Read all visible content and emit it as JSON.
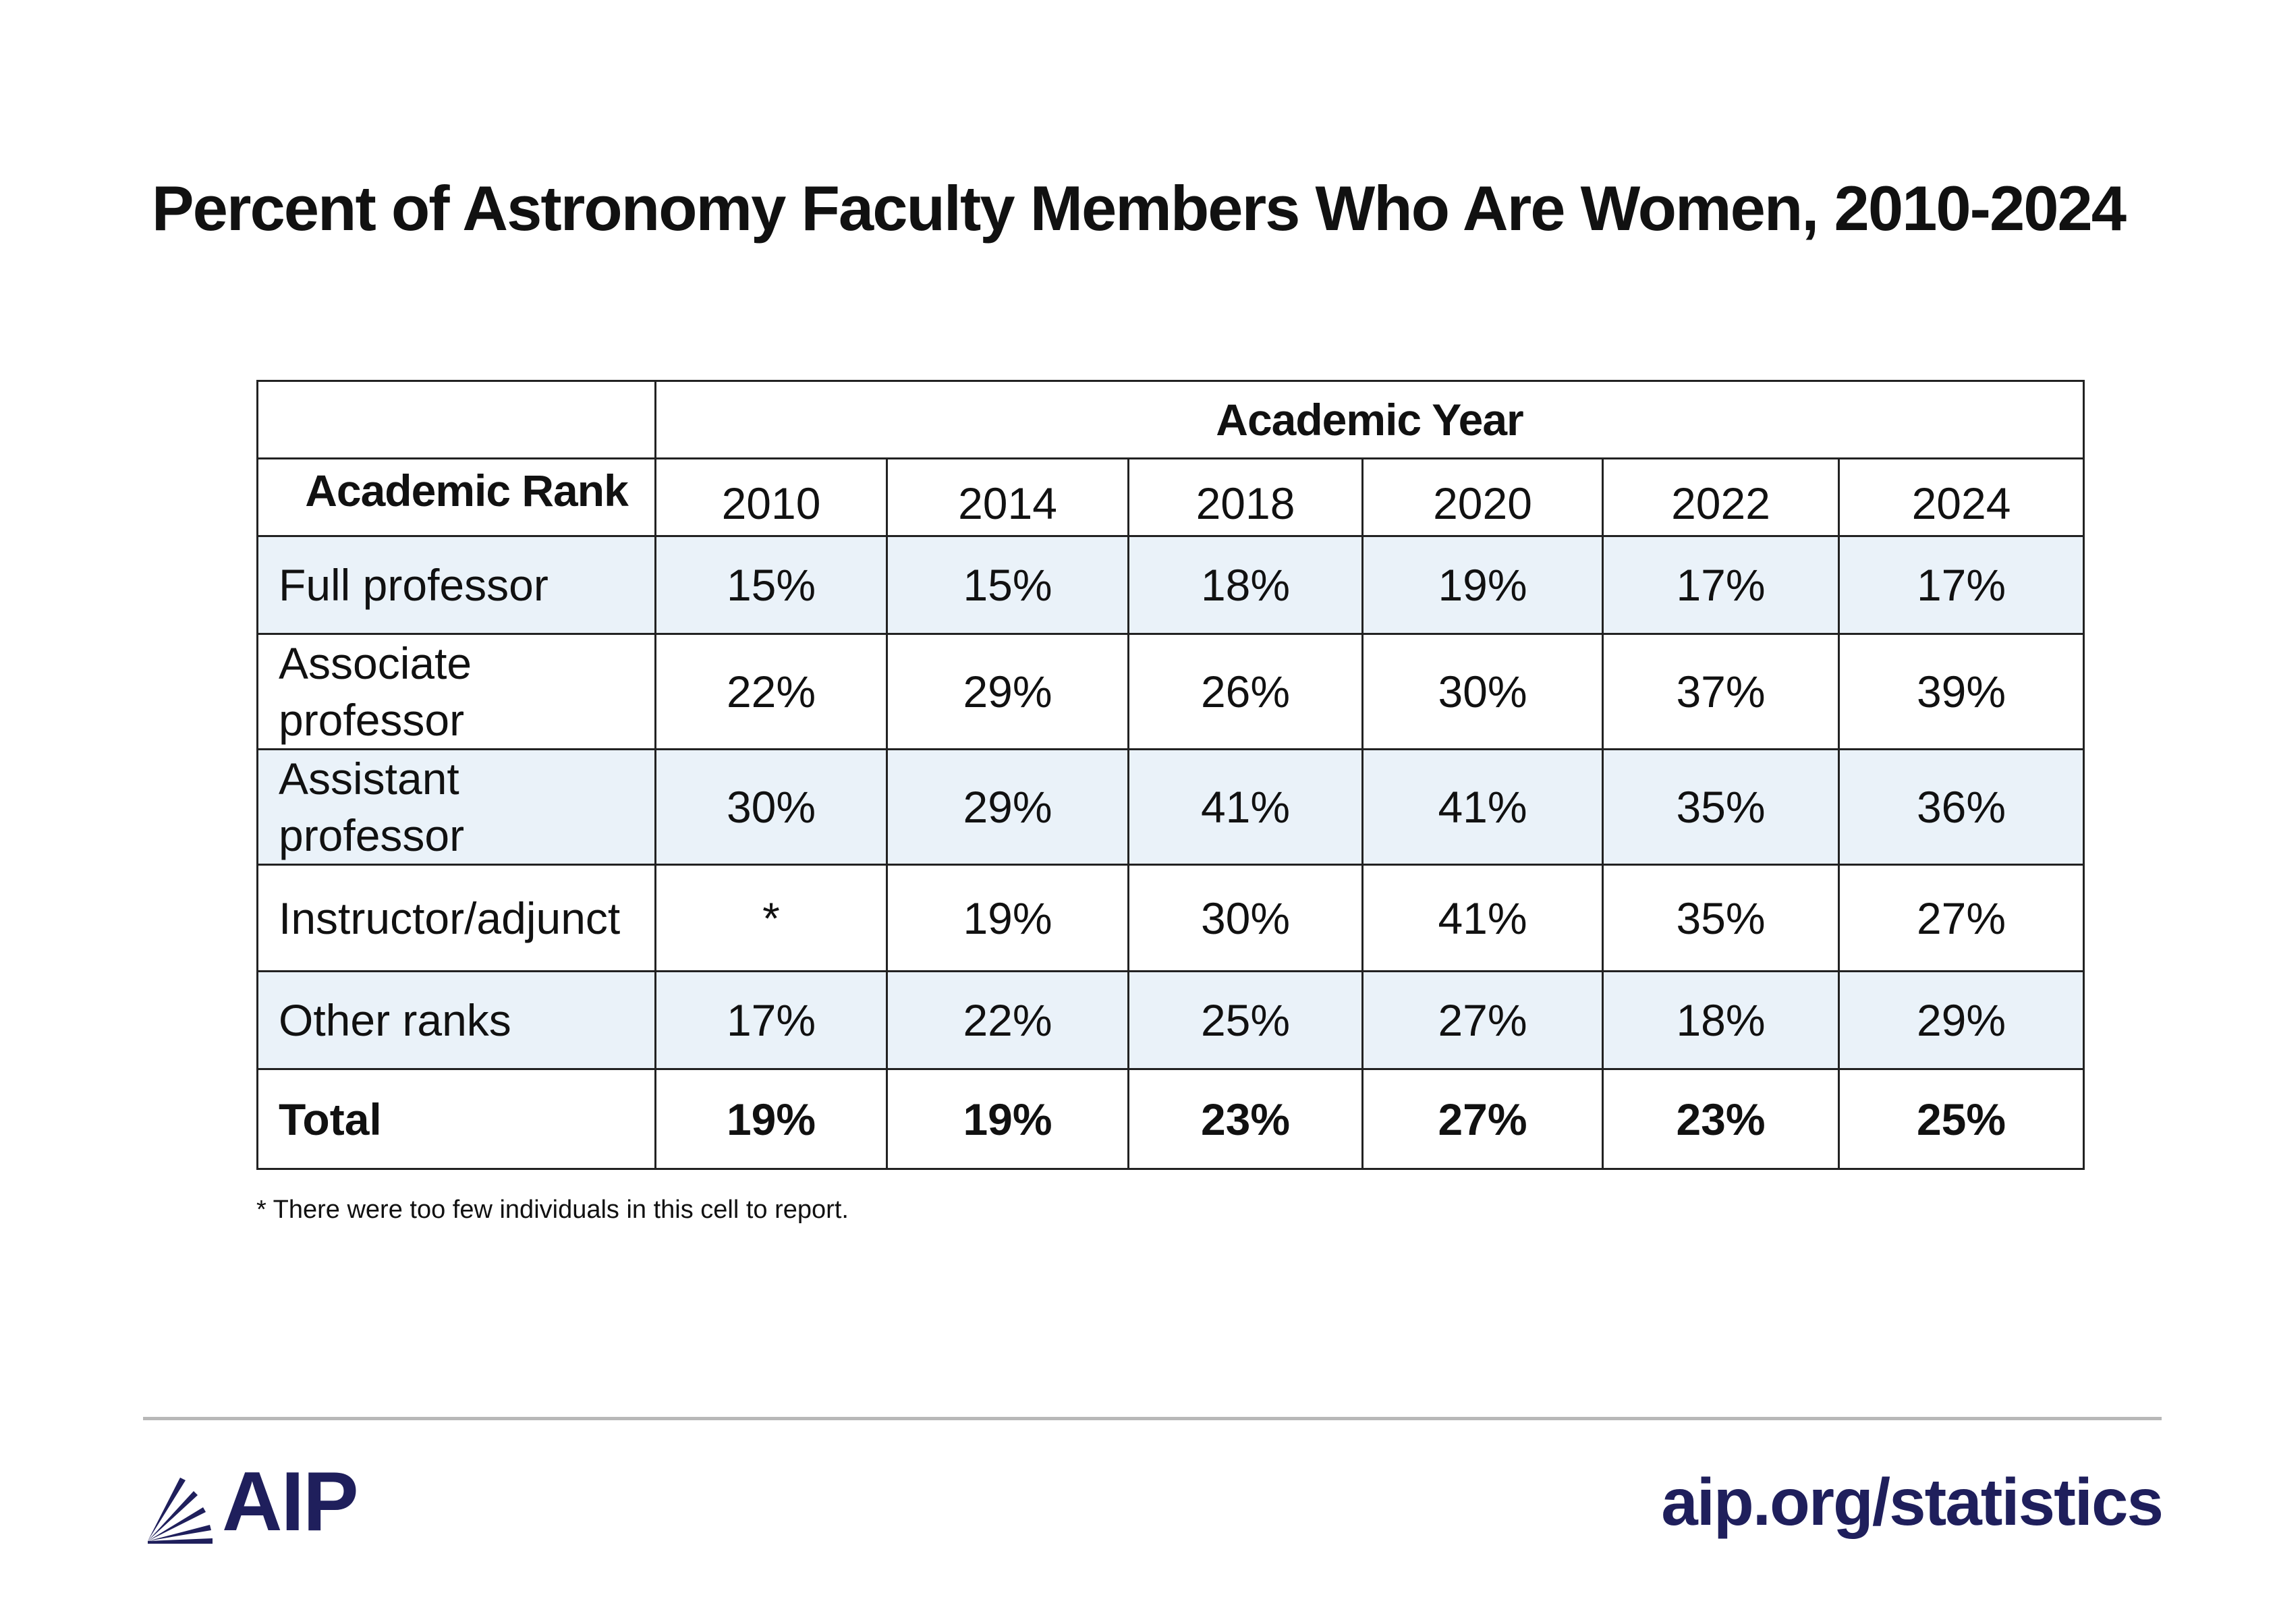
{
  "chart_data": {
    "type": "table",
    "title": "Percent of Astronomy Faculty Members Who Are Women, 2010-2024",
    "column_group_label": "Academic Year",
    "row_header_label": "Academic Rank",
    "columns": [
      "2010",
      "2014",
      "2018",
      "2020",
      "2022",
      "2024"
    ],
    "rows": [
      {
        "rank": "Full professor",
        "values": [
          "15%",
          "15%",
          "18%",
          "19%",
          "17%",
          "17%"
        ]
      },
      {
        "rank": "Associate professor",
        "values": [
          "22%",
          "29%",
          "26%",
          "30%",
          "37%",
          "39%"
        ]
      },
      {
        "rank": "Assistant professor",
        "values": [
          "30%",
          "29%",
          "41%",
          "41%",
          "35%",
          "36%"
        ]
      },
      {
        "rank": "Instructor/adjunct",
        "values": [
          "*",
          "19%",
          "30%",
          "41%",
          "35%",
          "27%"
        ]
      },
      {
        "rank": "Other ranks",
        "values": [
          "17%",
          "22%",
          "25%",
          "27%",
          "18%",
          "29%"
        ]
      }
    ],
    "total": {
      "label": "Total",
      "values": [
        "19%",
        "19%",
        "23%",
        "27%",
        "23%",
        "25%"
      ]
    },
    "footnote": "* There were too few individuals in this cell to report.",
    "colors": {
      "shaded_row": "#eaf2f9",
      "brand": "#1f1f5c"
    }
  },
  "footer": {
    "logo_text": "AIP",
    "logo_icon": "aip-rays-icon",
    "link": "aip.org/statistics"
  }
}
